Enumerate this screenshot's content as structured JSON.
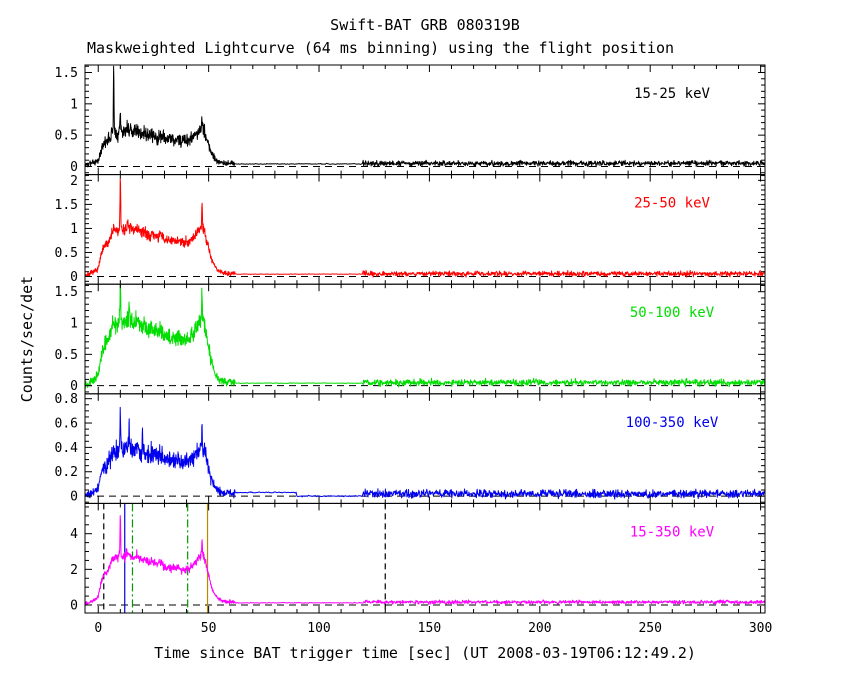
{
  "chart_data": {
    "type": "line",
    "title": "Swift-BAT GRB 080319B",
    "subtitle": "Maskweighted Lightcurve (64 ms binning) using the flight position",
    "xlabel": "Time since BAT trigger time [sec] (UT 2008-03-19T06:12:49.2)",
    "ylabel": "Counts/sec/det",
    "x": {
      "lim": [
        -6,
        302
      ],
      "major_ticks": [
        0,
        50,
        100,
        150,
        200,
        250,
        300
      ],
      "minor_step": 10
    },
    "gap": {
      "start": 62,
      "end": 120
    },
    "zero_line": {
      "dash": "7 5",
      "color": "#000000"
    },
    "envelope": [
      [
        -6,
        0
      ],
      [
        -4.5,
        0
      ],
      [
        -4,
        0.02
      ],
      [
        -2,
        0.05
      ],
      [
        -1,
        0.08
      ],
      [
        0,
        0.12
      ],
      [
        0.5,
        0.2
      ],
      [
        1,
        0.3
      ],
      [
        2,
        0.45
      ],
      [
        3,
        0.52
      ],
      [
        4,
        0.56
      ],
      [
        5,
        0.62
      ],
      [
        6,
        0.75
      ],
      [
        7,
        0.82
      ],
      [
        8,
        0.8
      ],
      [
        9,
        0.78
      ],
      [
        10,
        0.9
      ],
      [
        11,
        0.82
      ],
      [
        12,
        0.8
      ],
      [
        13,
        0.9
      ],
      [
        14,
        0.86
      ],
      [
        15,
        0.82
      ],
      [
        16,
        0.78
      ],
      [
        17,
        0.86
      ],
      [
        18,
        0.82
      ],
      [
        19,
        0.78
      ],
      [
        20,
        0.74
      ],
      [
        21,
        0.78
      ],
      [
        22,
        0.73
      ],
      [
        23,
        0.7
      ],
      [
        24,
        0.74
      ],
      [
        25,
        0.7
      ],
      [
        26,
        0.72
      ],
      [
        27,
        0.67
      ],
      [
        28,
        0.73
      ],
      [
        29,
        0.69
      ],
      [
        30,
        0.64
      ],
      [
        31,
        0.6
      ],
      [
        32,
        0.64
      ],
      [
        33,
        0.6
      ],
      [
        34,
        0.62
      ],
      [
        35,
        0.6
      ],
      [
        36,
        0.64
      ],
      [
        37,
        0.6
      ],
      [
        38,
        0.57
      ],
      [
        39,
        0.6
      ],
      [
        40,
        0.61
      ],
      [
        41,
        0.6
      ],
      [
        42,
        0.64
      ],
      [
        43,
        0.68
      ],
      [
        44,
        0.72
      ],
      [
        45,
        0.78
      ],
      [
        46,
        0.83
      ],
      [
        47,
        0.9
      ],
      [
        48,
        0.8
      ],
      [
        49,
        0.65
      ],
      [
        50,
        0.5
      ],
      [
        51,
        0.32
      ],
      [
        52,
        0.22
      ],
      [
        53,
        0.14
      ],
      [
        54,
        0.09
      ],
      [
        55,
        0.06
      ],
      [
        56,
        0.045
      ],
      [
        57,
        0.035
      ],
      [
        58,
        0.03
      ],
      [
        60,
        0.025
      ],
      [
        62,
        0.02
      ]
    ],
    "panels": [
      {
        "label": "15-25 keV",
        "color": "#000000",
        "ylim": [
          -0.13,
          1.62
        ],
        "yticks": [
          0,
          0.5,
          1,
          1.5
        ],
        "y_minor_step": 0.1,
        "amp": 0.65,
        "noise": {
          "base": 0.05,
          "scale": 0.13
        },
        "spikes": [
          {
            "t": 7,
            "h": 1.0
          },
          {
            "t": 10,
            "h": 0.25
          },
          {
            "t": 47,
            "h": 0.15
          }
        ],
        "quiet": [
          {
            "t0": 62,
            "t1": 120,
            "level": 0.04,
            "sigma": 0.005
          }
        ],
        "background": {
          "level": 0.05,
          "sigma": 0.035
        },
        "seed": 3
      },
      {
        "label": "25-50 keV",
        "color": "#ff0000",
        "ylim": [
          -0.16,
          2.12
        ],
        "yticks": [
          0,
          0.5,
          1,
          1.5,
          2
        ],
        "y_minor_step": 0.1,
        "amp": 1.15,
        "noise": {
          "base": 0.035,
          "scale": 0.065
        },
        "spikes": [
          {
            "t": 10,
            "h": 0.95
          },
          {
            "t": 47,
            "h": 0.45
          }
        ],
        "quiet": [
          {
            "t0": 62,
            "t1": 120,
            "level": 0.05,
            "sigma": 0.005
          }
        ],
        "background": {
          "level": 0.06,
          "sigma": 0.045
        },
        "seed": 7
      },
      {
        "label": "50-100 keV",
        "color": "#00dd00",
        "ylim": [
          -0.13,
          1.62
        ],
        "yticks": [
          0,
          0.5,
          1,
          1.5
        ],
        "y_minor_step": 0.1,
        "amp": 1.2,
        "noise": {
          "base": 0.04,
          "scale": 0.07
        },
        "spikes": [
          {
            "t": 10,
            "h": 0.55
          },
          {
            "t": 14,
            "h": 0.3
          },
          {
            "t": 47,
            "h": 0.35
          }
        ],
        "quiet": [
          {
            "t0": 62,
            "t1": 120,
            "level": 0.04,
            "sigma": 0.005
          }
        ],
        "background": {
          "level": 0.05,
          "sigma": 0.045
        },
        "seed": 13
      },
      {
        "label": "100-350 keV",
        "color": "#0000ee",
        "ylim": [
          -0.06,
          0.84
        ],
        "yticks": [
          0,
          0.2,
          0.4,
          0.6,
          0.8
        ],
        "y_minor_step": 0.05,
        "amp": 0.45,
        "noise": {
          "base": 0.06,
          "scale": 0.12
        },
        "spikes": [
          {
            "t": 10,
            "h": 0.3
          },
          {
            "t": 14,
            "h": 0.25
          },
          {
            "t": 20,
            "h": 0.2
          },
          {
            "t": 47,
            "h": 0.15
          }
        ],
        "quiet": [
          {
            "t0": 62,
            "t1": 90,
            "level": 0.03,
            "sigma": 0.004
          },
          {
            "t0": 90,
            "t1": 120,
            "level": 0.0,
            "sigma": 0.004
          }
        ],
        "background": {
          "level": 0.02,
          "sigma": 0.028
        },
        "seed": 21
      },
      {
        "label": "15-350 keV",
        "color": "#ff00ff",
        "ylim": [
          -0.45,
          5.7
        ],
        "yticks": [
          0,
          2,
          4
        ],
        "y_minor_step": 0.5,
        "amp": 3.2,
        "noise": {
          "base": 0.025,
          "scale": 0.05
        },
        "spikes": [
          {
            "t": 10,
            "h": 2.2
          },
          {
            "t": 47,
            "h": 0.5
          }
        ],
        "quiet": [
          {
            "t0": 62,
            "t1": 120,
            "level": 0.12,
            "sigma": 0.02
          }
        ],
        "background": {
          "level": 0.16,
          "sigma": 0.09
        },
        "seed": 29,
        "markers": [
          {
            "t": 2.5,
            "color": "#000000",
            "dash": "6 4"
          },
          {
            "t": 130,
            "color": "#000000",
            "dash": "6 4"
          },
          {
            "t": 15.5,
            "color": "#009900",
            "dash": "8 3 2 3"
          },
          {
            "t": 40.5,
            "color": "#009900",
            "dash": "8 3 2 3"
          },
          {
            "t": 12,
            "color": "#0000dd",
            "dash": ""
          },
          {
            "t": 49.5,
            "color": "#bb8800",
            "dash": ""
          }
        ]
      }
    ]
  }
}
